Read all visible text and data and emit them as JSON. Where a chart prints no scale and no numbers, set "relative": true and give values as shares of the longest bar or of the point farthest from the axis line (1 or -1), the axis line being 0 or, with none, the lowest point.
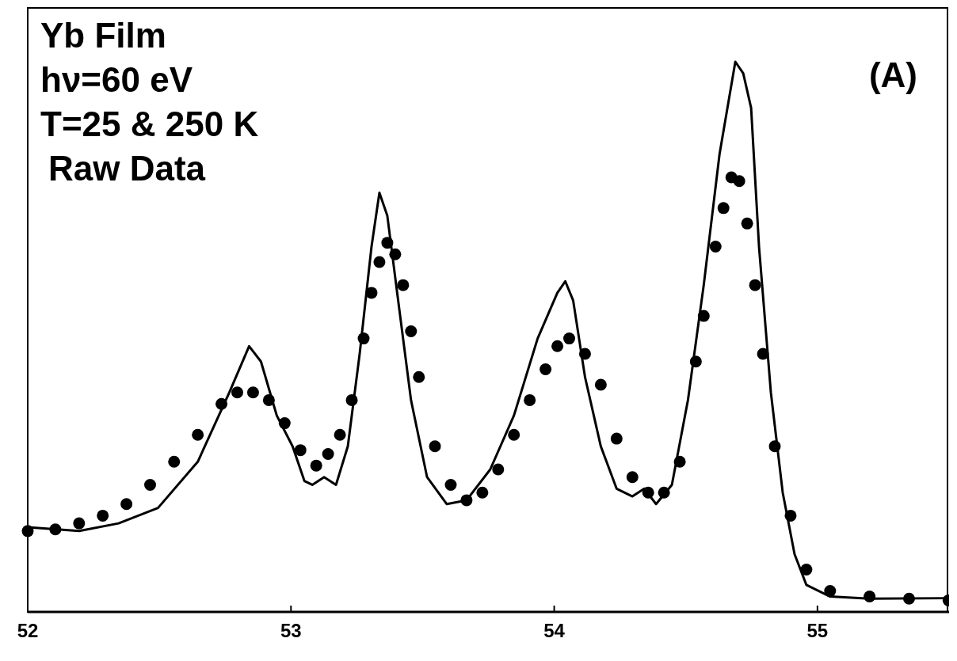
{
  "chart_data": {
    "type": "line",
    "relative": true,
    "xlim": [
      52,
      55.5
    ],
    "xticks": [
      52,
      53,
      54,
      55
    ],
    "annotations": [
      "Yb Film",
      "hν=60 eV",
      "T=25 & 250 K",
      "Raw Data",
      "(A)"
    ],
    "series": [
      {
        "color": "#000000",
        "marker": "none",
        "line_style": "solid",
        "x": [
          52.0,
          52.195,
          52.345,
          52.495,
          52.646,
          52.766,
          52.841,
          52.886,
          52.946,
          53.006,
          53.051,
          53.081,
          53.126,
          53.171,
          53.216,
          53.261,
          53.306,
          53.336,
          53.366,
          53.411,
          53.456,
          53.517,
          53.592,
          53.667,
          53.757,
          53.847,
          53.937,
          54.012,
          54.042,
          54.072,
          54.117,
          54.177,
          54.237,
          54.297,
          54.342,
          54.387,
          54.447,
          54.508,
          54.568,
          54.628,
          54.688,
          54.718,
          54.748,
          54.778,
          54.823,
          54.868,
          54.913,
          54.958,
          55.048,
          55.198,
          55.498
        ],
        "values": [
          0.154,
          0.147,
          0.161,
          0.189,
          0.273,
          0.399,
          0.483,
          0.455,
          0.357,
          0.301,
          0.238,
          0.231,
          0.245,
          0.231,
          0.301,
          0.469,
          0.664,
          0.762,
          0.72,
          0.552,
          0.385,
          0.245,
          0.196,
          0.203,
          0.259,
          0.357,
          0.497,
          0.58,
          0.601,
          0.566,
          0.427,
          0.301,
          0.224,
          0.21,
          0.224,
          0.196,
          0.231,
          0.385,
          0.594,
          0.832,
          1.0,
          0.979,
          0.916,
          0.664,
          0.399,
          0.217,
          0.105,
          0.049,
          0.028,
          0.024,
          0.025
        ]
      },
      {
        "type": "scatter",
        "color": "#000000",
        "marker": "circle",
        "x": [
          52.0,
          52.105,
          52.195,
          52.285,
          52.375,
          52.465,
          52.556,
          52.646,
          52.736,
          52.796,
          52.856,
          52.916,
          52.976,
          53.036,
          53.096,
          53.141,
          53.186,
          53.231,
          53.276,
          53.306,
          53.336,
          53.366,
          53.396,
          53.426,
          53.456,
          53.486,
          53.547,
          53.607,
          53.667,
          53.727,
          53.787,
          53.847,
          53.907,
          53.967,
          54.012,
          54.057,
          54.117,
          54.177,
          54.237,
          54.297,
          54.357,
          54.417,
          54.477,
          54.538,
          54.568,
          54.613,
          54.643,
          54.673,
          54.703,
          54.733,
          54.763,
          54.793,
          54.838,
          54.898,
          54.958,
          55.048,
          55.198,
          55.348,
          55.498
        ],
        "values": [
          0.147,
          0.15,
          0.161,
          0.175,
          0.196,
          0.231,
          0.273,
          0.322,
          0.378,
          0.399,
          0.399,
          0.385,
          0.343,
          0.294,
          0.266,
          0.287,
          0.322,
          0.385,
          0.497,
          0.58,
          0.636,
          0.671,
          0.65,
          0.594,
          0.51,
          0.427,
          0.301,
          0.231,
          0.203,
          0.217,
          0.259,
          0.322,
          0.385,
          0.441,
          0.483,
          0.497,
          0.469,
          0.413,
          0.315,
          0.245,
          0.217,
          0.217,
          0.273,
          0.455,
          0.538,
          0.664,
          0.734,
          0.79,
          0.783,
          0.706,
          0.594,
          0.469,
          0.301,
          0.175,
          0.077,
          0.038,
          0.028,
          0.024,
          0.021
        ]
      }
    ]
  }
}
